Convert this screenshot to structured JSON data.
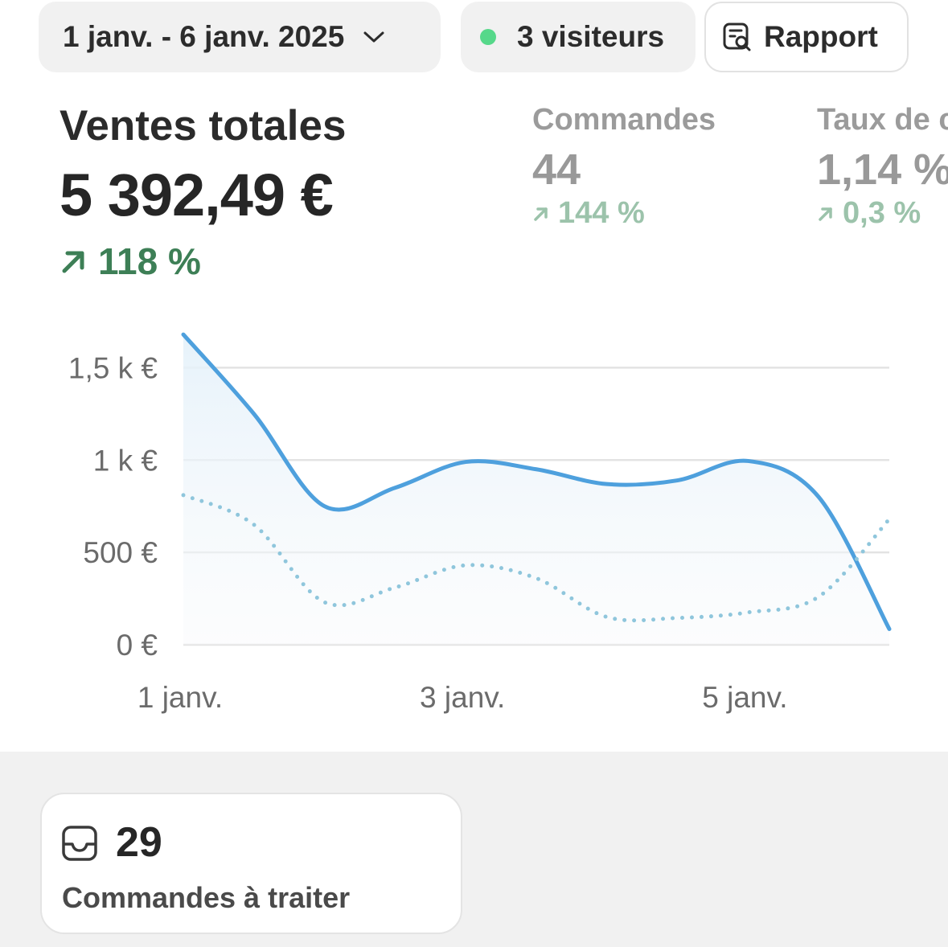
{
  "toolbar": {
    "date_range": "1 janv. - 6 janv. 2025",
    "visitors": "3 visiteurs",
    "report_label": "Rapport"
  },
  "summary": {
    "title": "Ventes totales",
    "value": "5 392,49 €",
    "change": "118 %",
    "change_color": "#3d7f56"
  },
  "metrics": [
    {
      "label": "Commandes",
      "value": "44",
      "change": "144 %"
    },
    {
      "label": "Taux de c",
      "value": "1,14 %",
      "change": "0,3 %"
    }
  ],
  "chart_data": {
    "type": "line",
    "x": [
      "1 janv.",
      "1,5 janv.",
      "2 janv.",
      "2,5 janv.",
      "3 janv.",
      "3,5 janv.",
      "4 janv.",
      "4,5 janv.",
      "5 janv.",
      "5,5 janv.",
      "6 janv."
    ],
    "xticks": [
      "1 janv.",
      "3 janv.",
      "5 janv."
    ],
    "yticks": [
      "0 €",
      "500 €",
      "1 k €",
      "1,5 k €"
    ],
    "ylim": [
      0,
      1750
    ],
    "series": [
      {
        "values": [
          1680,
          1250,
          750,
          850,
          990,
          950,
          870,
          890,
          995,
          800,
          85
        ],
        "style": "solid",
        "color": "#4ea0dd"
      },
      {
        "values": [
          810,
          650,
          230,
          310,
          430,
          360,
          150,
          145,
          175,
          260,
          680
        ],
        "style": "dotted",
        "color": "#8fc6dc"
      }
    ]
  },
  "todo": {
    "count": "29",
    "label": "Commandes à traiter"
  }
}
